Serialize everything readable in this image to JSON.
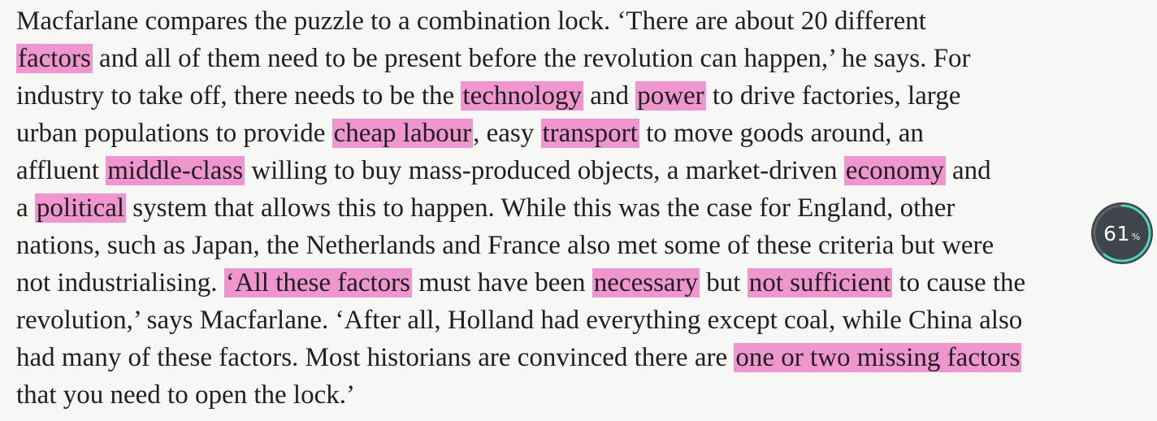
{
  "passage": {
    "lines": [
      [
        {
          "t": "Macfarlane compares the puzzle to a combination lock. ‘There are about 20 different"
        }
      ],
      [
        {
          "t": "factors",
          "h": true
        },
        {
          "t": " and all of them need to be present before the revolution can happen,’ he says. For"
        }
      ],
      [
        {
          "t": "industry to take off, there needs to be the "
        },
        {
          "t": "technology",
          "h": true
        },
        {
          "t": " and "
        },
        {
          "t": "power",
          "h": true
        },
        {
          "t": " to drive factories, large"
        }
      ],
      [
        {
          "t": "urban populations to provide "
        },
        {
          "t": "cheap labour",
          "h": true
        },
        {
          "t": ", easy "
        },
        {
          "t": "transport",
          "h": true
        },
        {
          "t": " to move goods around, an"
        }
      ],
      [
        {
          "t": "affluent "
        },
        {
          "t": "middle-class",
          "h": true
        },
        {
          "t": " willing to buy mass-produced objects, a market-driven "
        },
        {
          "t": "economy",
          "h": true
        },
        {
          "t": " and"
        }
      ],
      [
        {
          "t": "a "
        },
        {
          "t": "political",
          "h": true
        },
        {
          "t": " system that allows this to happen. While this was the case for England, other"
        }
      ],
      [
        {
          "t": "nations, such as Japan, the Netherlands and France also met some of these criteria but were"
        }
      ],
      [
        {
          "t": "not industrialising. "
        },
        {
          "t": "‘All these factors",
          "h": true
        },
        {
          "t": " must have been "
        },
        {
          "t": "necessary",
          "h": true
        },
        {
          "t": " but "
        },
        {
          "t": "not sufficient",
          "h": true
        },
        {
          "t": " to cause the"
        }
      ],
      [
        {
          "t": "revolution,’ says Macfarlane. ‘After all, Holland had everything except coal, while China also"
        }
      ],
      [
        {
          "t": "had many of these factors. Most historians are convinced there are "
        },
        {
          "t": "one or two missing factors",
          "h": true
        }
      ],
      [
        {
          "t": "that you need to open the lock.’"
        }
      ]
    ]
  },
  "highlight_color": "#ef96cf",
  "progress": {
    "value_text": "61",
    "unit": "%",
    "fraction": 0.61
  }
}
